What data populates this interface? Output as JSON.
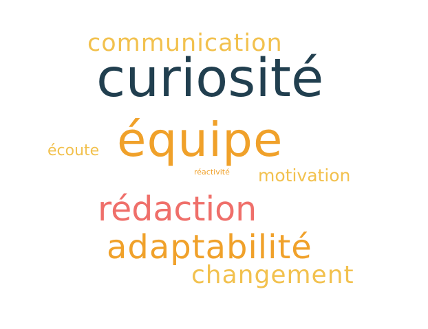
{
  "colors": {
    "background": "#ffffff",
    "yellow": "#f2c14e",
    "orange": "#f0a12a",
    "navy": "#213f4f",
    "coral": "#ef6f6a"
  },
  "words": [
    {
      "text": "communication",
      "color": "#f2c14e"
    },
    {
      "text": "curiosité",
      "color": "#213f4f"
    },
    {
      "text": "équipe",
      "color": "#f0a12a"
    },
    {
      "text": "écoute",
      "color": "#f2c14e"
    },
    {
      "text": "réactivité",
      "color": "#f0a12a"
    },
    {
      "text": "motivation",
      "color": "#f2c14e"
    },
    {
      "text": "rédaction",
      "color": "#ef6f6a"
    },
    {
      "text": "adaptabilité",
      "color": "#f0a12a"
    },
    {
      "text": "changement",
      "color": "#f2c14e"
    }
  ]
}
